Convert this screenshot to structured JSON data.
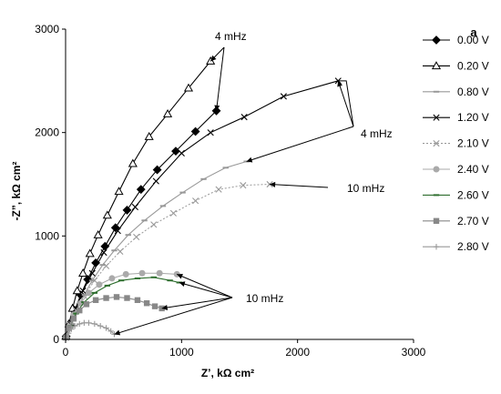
{
  "chart_data": {
    "type": "scatter",
    "panel_label": "a",
    "xlabel": "Z’, kΩ cm²",
    "ylabel": "-Z”, kΩ cm²",
    "xlim": [
      0,
      3000
    ],
    "ylim": [
      0,
      3000
    ],
    "xticks": [
      "0",
      "1000",
      "2000",
      "3000"
    ],
    "yticks": [
      "0",
      "1000",
      "2000",
      "3000"
    ],
    "grid": false,
    "legend_position": "right",
    "series": [
      {
        "name": "0.00 V",
        "color": "#000000",
        "marker": "diamond",
        "line": "solid",
        "x": [
          5,
          40,
          80,
          130,
          190,
          260,
          340,
          430,
          530,
          650,
          790,
          950,
          1120,
          1300
        ],
        "y": [
          30,
          140,
          280,
          430,
          580,
          740,
          900,
          1080,
          1250,
          1450,
          1640,
          1820,
          2010,
          2210
        ]
      },
      {
        "name": "0.20 V",
        "color": "#000000",
        "marker": "triangle-open",
        "line": "solid",
        "x": [
          3,
          30,
          60,
          100,
          150,
          210,
          280,
          360,
          460,
          580,
          720,
          880,
          1060,
          1250
        ],
        "y": [
          30,
          150,
          300,
          470,
          640,
          830,
          1010,
          1200,
          1430,
          1700,
          1960,
          2180,
          2430,
          2690
        ]
      },
      {
        "name": "0.80 V",
        "color": "#999999",
        "marker": "dash",
        "line": "solid",
        "x": [
          5,
          50,
          100,
          160,
          230,
          320,
          420,
          540,
          680,
          840,
          1010,
          1190,
          1380,
          1560
        ],
        "y": [
          20,
          150,
          290,
          430,
          570,
          720,
          860,
          1010,
          1150,
          1290,
          1420,
          1550,
          1660,
          1720
        ]
      },
      {
        "name": "1.20 V",
        "color": "#000000",
        "marker": "x",
        "line": "solid",
        "x": [
          5,
          40,
          90,
          150,
          230,
          330,
          450,
          600,
          780,
          1000,
          1250,
          1540,
          1880,
          2350
        ],
        "y": [
          20,
          150,
          300,
          470,
          640,
          840,
          1050,
          1280,
          1530,
          1800,
          2000,
          2150,
          2350,
          2500
        ]
      },
      {
        "name": "2.10 V",
        "color": "#999999",
        "marker": "x",
        "line": "dotted",
        "x": [
          5,
          40,
          90,
          160,
          250,
          350,
          470,
          610,
          760,
          930,
          1120,
          1320,
          1530,
          1760
        ],
        "y": [
          20,
          140,
          280,
          420,
          570,
          710,
          850,
          990,
          1110,
          1220,
          1340,
          1450,
          1490,
          1500
        ]
      },
      {
        "name": "2.40 V",
        "color": "#aaaaaa",
        "marker": "circle",
        "line": "solid",
        "x": [
          5,
          30,
          70,
          130,
          200,
          290,
          400,
          520,
          660,
          810,
          960
        ],
        "y": [
          20,
          120,
          240,
          350,
          450,
          530,
          590,
          630,
          640,
          640,
          630
        ]
      },
      {
        "name": "2.60 V",
        "color": "#2e6e2e",
        "marker": "dash",
        "line": "solid",
        "x": [
          5,
          40,
          90,
          160,
          250,
          360,
          480,
          620,
          760,
          900,
          980
        ],
        "y": [
          20,
          130,
          250,
          360,
          450,
          520,
          570,
          590,
          600,
          570,
          550
        ]
      },
      {
        "name": "2.70 V",
        "color": "#888888",
        "marker": "square",
        "line": "solid",
        "x": [
          5,
          30,
          70,
          120,
          180,
          260,
          350,
          440,
          530,
          620,
          700,
          770,
          830
        ],
        "y": [
          20,
          110,
          200,
          280,
          340,
          380,
          400,
          410,
          400,
          380,
          350,
          320,
          300
        ]
      },
      {
        "name": "2.80 V",
        "color": "#999999",
        "marker": "plus",
        "line": "solid",
        "x": [
          5,
          25,
          50,
          80,
          120,
          160,
          200,
          250,
          300,
          350,
          390,
          420
        ],
        "y": [
          20,
          60,
          100,
          130,
          150,
          160,
          160,
          150,
          130,
          110,
          80,
          50
        ]
      }
    ],
    "annotations": [
      {
        "text": "4 mHz"
      },
      {
        "text": "4 mHz"
      },
      {
        "text": "10 mHz"
      },
      {
        "text": "10 mHz"
      }
    ]
  }
}
